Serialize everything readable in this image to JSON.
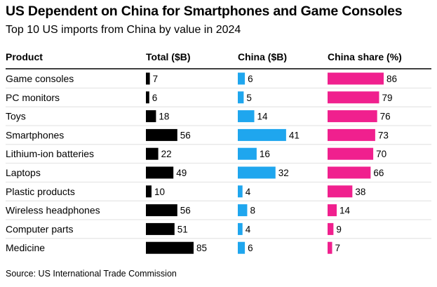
{
  "title": "US Dependent on China for Smartphones and Game Consoles",
  "subtitle": "Top 10 US imports from China by value in 2024",
  "source": "Source: US International Trade Commission",
  "colors": {
    "total": "#000000",
    "china": "#1fa6ee",
    "share": "#f0208e",
    "rule": "#000000",
    "divider": "#d9d9d9"
  },
  "chart_data": {
    "type": "bar",
    "title": "US Dependent on China for Smartphones and Game Consoles",
    "subtitle": "Top 10 US imports from China by value in 2024",
    "category_header": "Product",
    "categories": [
      "Game consoles",
      "PC monitors",
      "Toys",
      "Smartphones",
      "Lithium-ion batteries",
      "Laptops",
      "Plastic products",
      "Wireless headphones",
      "Computer parts",
      "Medicine"
    ],
    "series": [
      {
        "name": "Total ($B)",
        "values": [
          7,
          6,
          18,
          56,
          22,
          49,
          10,
          56,
          51,
          85
        ]
      },
      {
        "name": "China ($B)",
        "values": [
          6,
          5,
          14,
          41,
          16,
          32,
          4,
          8,
          4,
          6
        ]
      },
      {
        "name": "China share (%)",
        "values": [
          86,
          79,
          76,
          73,
          70,
          66,
          38,
          14,
          9,
          7
        ]
      }
    ]
  }
}
